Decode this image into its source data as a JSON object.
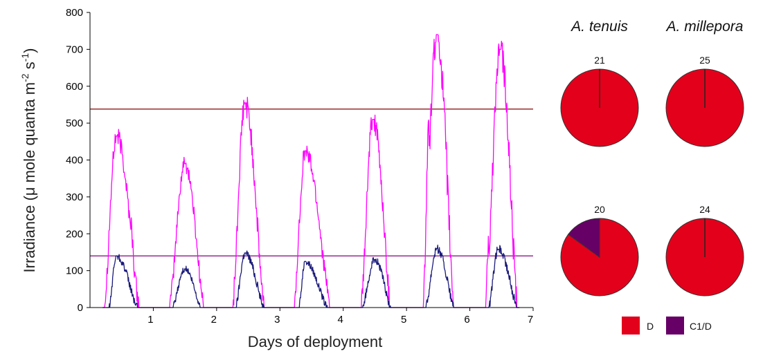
{
  "chart_data": [
    {
      "type": "line",
      "xlabel": "Days of deployment",
      "ylabel": "Irradiance (μ mole quanta m-2 s-1)",
      "ylabel_parts": {
        "pre": "Irradiance (μ mole quanta m",
        "exp1": "-2",
        "mid": " s",
        "exp2": "-1",
        "post": ")"
      },
      "xlim": [
        0,
        7
      ],
      "ylim": [
        0,
        800
      ],
      "x_ticks": [
        1,
        2,
        3,
        4,
        5,
        6,
        7
      ],
      "y_ticks": [
        0,
        100,
        200,
        300,
        400,
        500,
        600,
        700,
        800
      ],
      "grid": false,
      "reference_lines": [
        {
          "y": 538,
          "color": "#8B1A1A"
        },
        {
          "y": 140,
          "color": "#8B1A8B"
        }
      ],
      "series": [
        {
          "color": "#FF00FF",
          "days": [
            {
              "start": 0.22,
              "end": 0.78,
              "peak_x": 0.42,
              "peak": 465,
              "extra": [
                [
                  0.55,
                  290
                ],
                [
                  0.63,
                  240
                ]
              ]
            },
            {
              "start": 1.25,
              "end": 1.8,
              "peak_x": 1.5,
              "peak": 390
            },
            {
              "start": 2.25,
              "end": 2.75,
              "peak_x": 2.45,
              "peak": 555
            },
            {
              "start": 3.22,
              "end": 3.8,
              "peak_x": 3.4,
              "peak": 425
            },
            {
              "start": 4.28,
              "end": 4.75,
              "peak_x": 4.47,
              "peak": 510
            },
            {
              "start": 5.25,
              "end": 5.75,
              "peak_x": 5.48,
              "peak": 740,
              "extra": [
                [
                  5.35,
                  475
                ]
              ]
            },
            {
              "start": 6.25,
              "end": 6.75,
              "peak_x": 6.48,
              "peak": 700,
              "extra": [
                [
                  6.3,
                  165
                ]
              ]
            }
          ]
        },
        {
          "color": "#1A1A7A",
          "days": [
            {
              "start": 0.3,
              "end": 0.75,
              "peak_x": 0.42,
              "peak": 140
            },
            {
              "start": 1.3,
              "end": 1.75,
              "peak_x": 1.5,
              "peak": 105
            },
            {
              "start": 2.3,
              "end": 2.75,
              "peak_x": 2.45,
              "peak": 148
            },
            {
              "start": 3.3,
              "end": 3.75,
              "peak_x": 3.4,
              "peak": 125
            },
            {
              "start": 4.3,
              "end": 4.75,
              "peak_x": 4.5,
              "peak": 130
            },
            {
              "start": 5.3,
              "end": 5.75,
              "peak_x": 5.48,
              "peak": 160
            },
            {
              "start": 6.3,
              "end": 6.75,
              "peak_x": 6.45,
              "peak": 158
            }
          ]
        }
      ]
    },
    {
      "type": "pie",
      "columns": [
        "A. tenuis",
        "A. millepora"
      ],
      "pies": [
        {
          "n": "21",
          "slices": [
            {
              "label": "D",
              "value": 1.0
            }
          ]
        },
        {
          "n": "25",
          "slices": [
            {
              "label": "D",
              "value": 1.0
            }
          ]
        },
        {
          "n": "20",
          "slices": [
            {
              "label": "D",
              "value": 0.85
            },
            {
              "label": "C1/D",
              "value": 0.15
            }
          ]
        },
        {
          "n": "24",
          "slices": [
            {
              "label": "D",
              "value": 1.0
            }
          ]
        }
      ],
      "legend": [
        {
          "label": "D",
          "color": "#E3001B"
        },
        {
          "label": "C1/D",
          "color": "#660066"
        }
      ]
    }
  ]
}
